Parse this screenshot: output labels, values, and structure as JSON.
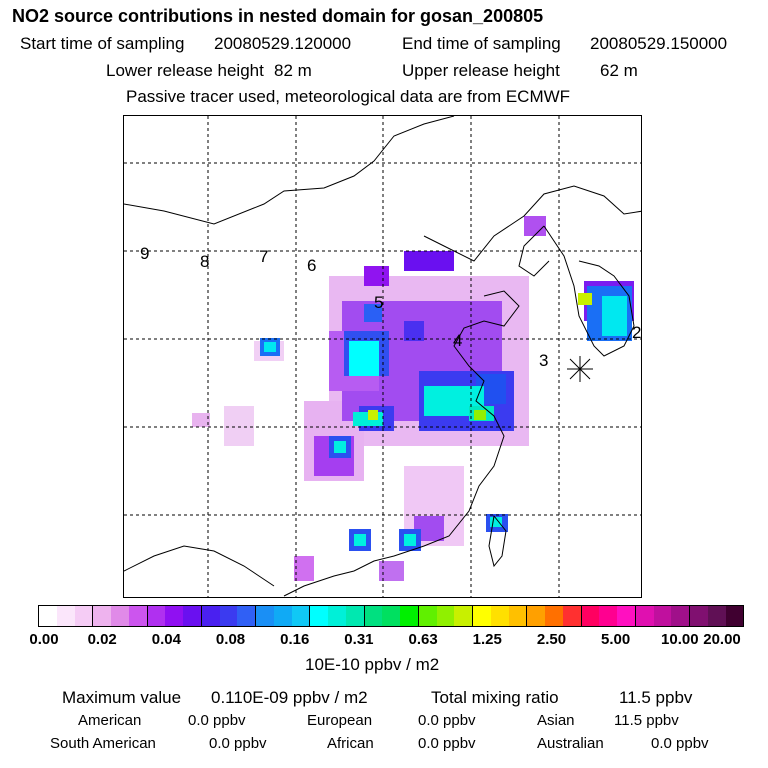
{
  "header": {
    "title": "NO2 source contributions in nested domain for gosan_200805",
    "start_label": "Start time of sampling",
    "start_value": "20080529.120000",
    "end_label": "End time of sampling",
    "end_value": "20080529.150000",
    "lower_label": "Lower release height",
    "lower_value": "82 m",
    "upper_label": "Upper release height",
    "upper_value": "62 m",
    "note": "Passive tracer used, meteorological data are from ECMWF"
  },
  "map": {
    "region_labels": [
      "9",
      "8",
      "7",
      "6",
      "5",
      "4",
      "3",
      "2"
    ],
    "receptor_icon": "asterisk-icon"
  },
  "colorbar": {
    "ticks": [
      "0.00",
      "0.02",
      "0.04",
      "0.08",
      "0.16",
      "0.31",
      "0.63",
      "1.25",
      "2.50",
      "5.00",
      "10.00",
      "20.00"
    ],
    "colors": [
      "#ffffff",
      "#fbe6fb",
      "#f5ccf5",
      "#eeb3ee",
      "#e08ae8",
      "#cc55ee",
      "#b030f0",
      "#9010f2",
      "#6a10f0",
      "#4a20f0",
      "#3b3bf0",
      "#3060f5",
      "#1a8ff5",
      "#10aaf5",
      "#10c8f5",
      "#00ffff",
      "#00f0d8",
      "#00e8b0",
      "#00e080",
      "#00e060",
      "#00f000",
      "#60f000",
      "#90f000",
      "#c8f000",
      "#ffff00",
      "#ffe000",
      "#ffc000",
      "#ffa000",
      "#ff7000",
      "#ff3030",
      "#ff0060",
      "#ff0090",
      "#ff10c0",
      "#e010b0",
      "#c0109e",
      "#a0108a",
      "#801070",
      "#601055",
      "#400030"
    ],
    "units": "10E-10 ppbv / m2"
  },
  "chart_data": {
    "type": "heatmap",
    "title": "NO2 source contributions in nested domain for gosan_200805",
    "colorbar_label": "10E-10 ppbv / m2",
    "levels": [
      0.0,
      0.02,
      0.04,
      0.08,
      0.16,
      0.31,
      0.63,
      1.25,
      2.5,
      5.0,
      10.0,
      20.0
    ]
  },
  "stats": {
    "max_label": "Maximum value",
    "max_value": "0.110E-09 ppbv / m2",
    "total_label": "Total mixing ratio",
    "total_value": "11.5 ppbv",
    "regions": [
      {
        "name": "American",
        "value": "0.0 ppbv"
      },
      {
        "name": "European",
        "value": "0.0 ppbv"
      },
      {
        "name": "Asian",
        "value": "11.5 ppbv"
      },
      {
        "name": "South American",
        "value": "0.0 ppbv"
      },
      {
        "name": "African",
        "value": "0.0 ppbv"
      },
      {
        "name": "Australian",
        "value": "0.0 ppbv"
      }
    ]
  }
}
